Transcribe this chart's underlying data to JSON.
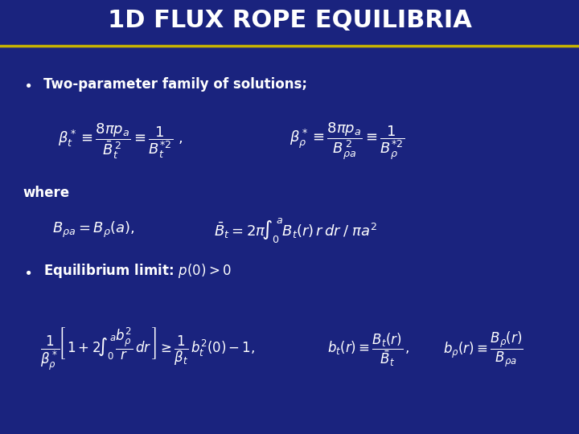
{
  "background_color": "#1a237e",
  "title": "1D FLUX ROPE EQUILIBRIA",
  "title_color": "#ffffff",
  "title_fontsize": 22,
  "separator_color": "#c8b400",
  "text_color": "#ffffff",
  "math_color": "#ffffff",
  "bullet1_text": "Two-parameter family of solutions;",
  "where_text": "where",
  "fig_width": 7.2,
  "fig_height": 5.4,
  "dpi": 100
}
